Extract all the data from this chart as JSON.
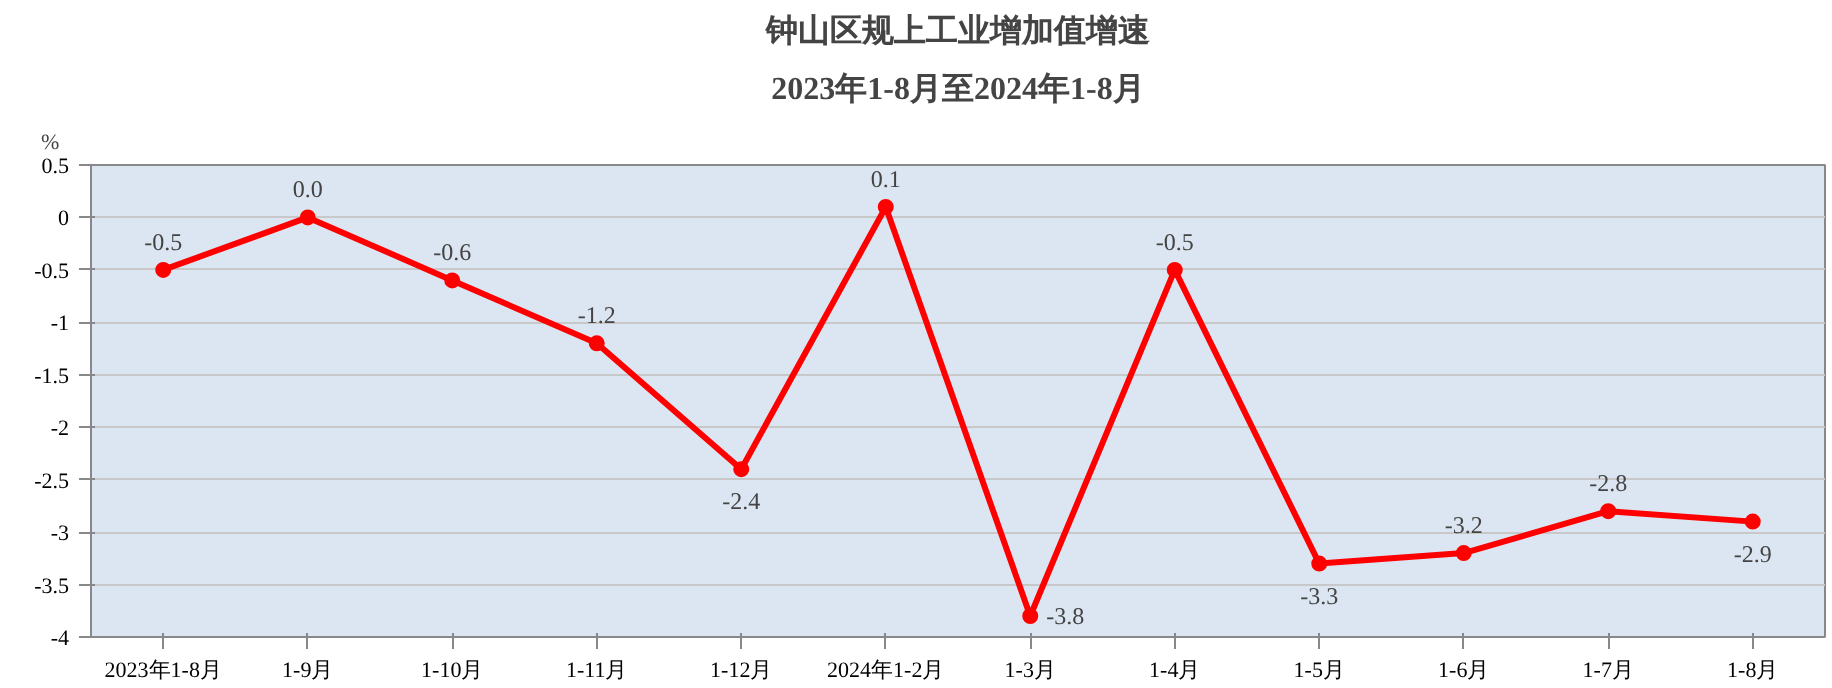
{
  "chart_data": {
    "type": "line",
    "title": "钟山区规上工业增加值增速",
    "subtitle": "2023年1-8月至2024年1-8月",
    "ylabel": "%",
    "categories": [
      "2023年1-8月",
      "1-9月",
      "1-10月",
      "1-11月",
      "1-12月",
      "2024年1-2月",
      "1-3月",
      "1-4月",
      "1-5月",
      "1-6月",
      "1-7月",
      "1-8月"
    ],
    "series": [
      {
        "color": "#ff0000",
        "values": [
          -0.5,
          0.0,
          -0.6,
          -1.2,
          -2.4,
          0.1,
          -3.8,
          -0.5,
          -3.3,
          -3.2,
          -2.8,
          -2.9
        ],
        "value_labels": [
          "-0.5",
          "0.0",
          "-0.6",
          "-1.2",
          "-2.4",
          "0.1",
          "-3.8",
          "-0.5",
          "-3.3",
          "-3.2",
          "-2.8",
          "-2.9"
        ]
      }
    ],
    "ylim": [
      -4,
      0.5
    ],
    "yticks": [
      0.5,
      0,
      -0.5,
      -1,
      -1.5,
      -2,
      -2.5,
      -3,
      -3.5,
      -4
    ],
    "grid": "y",
    "marker": "circle",
    "line_style": "solid"
  }
}
